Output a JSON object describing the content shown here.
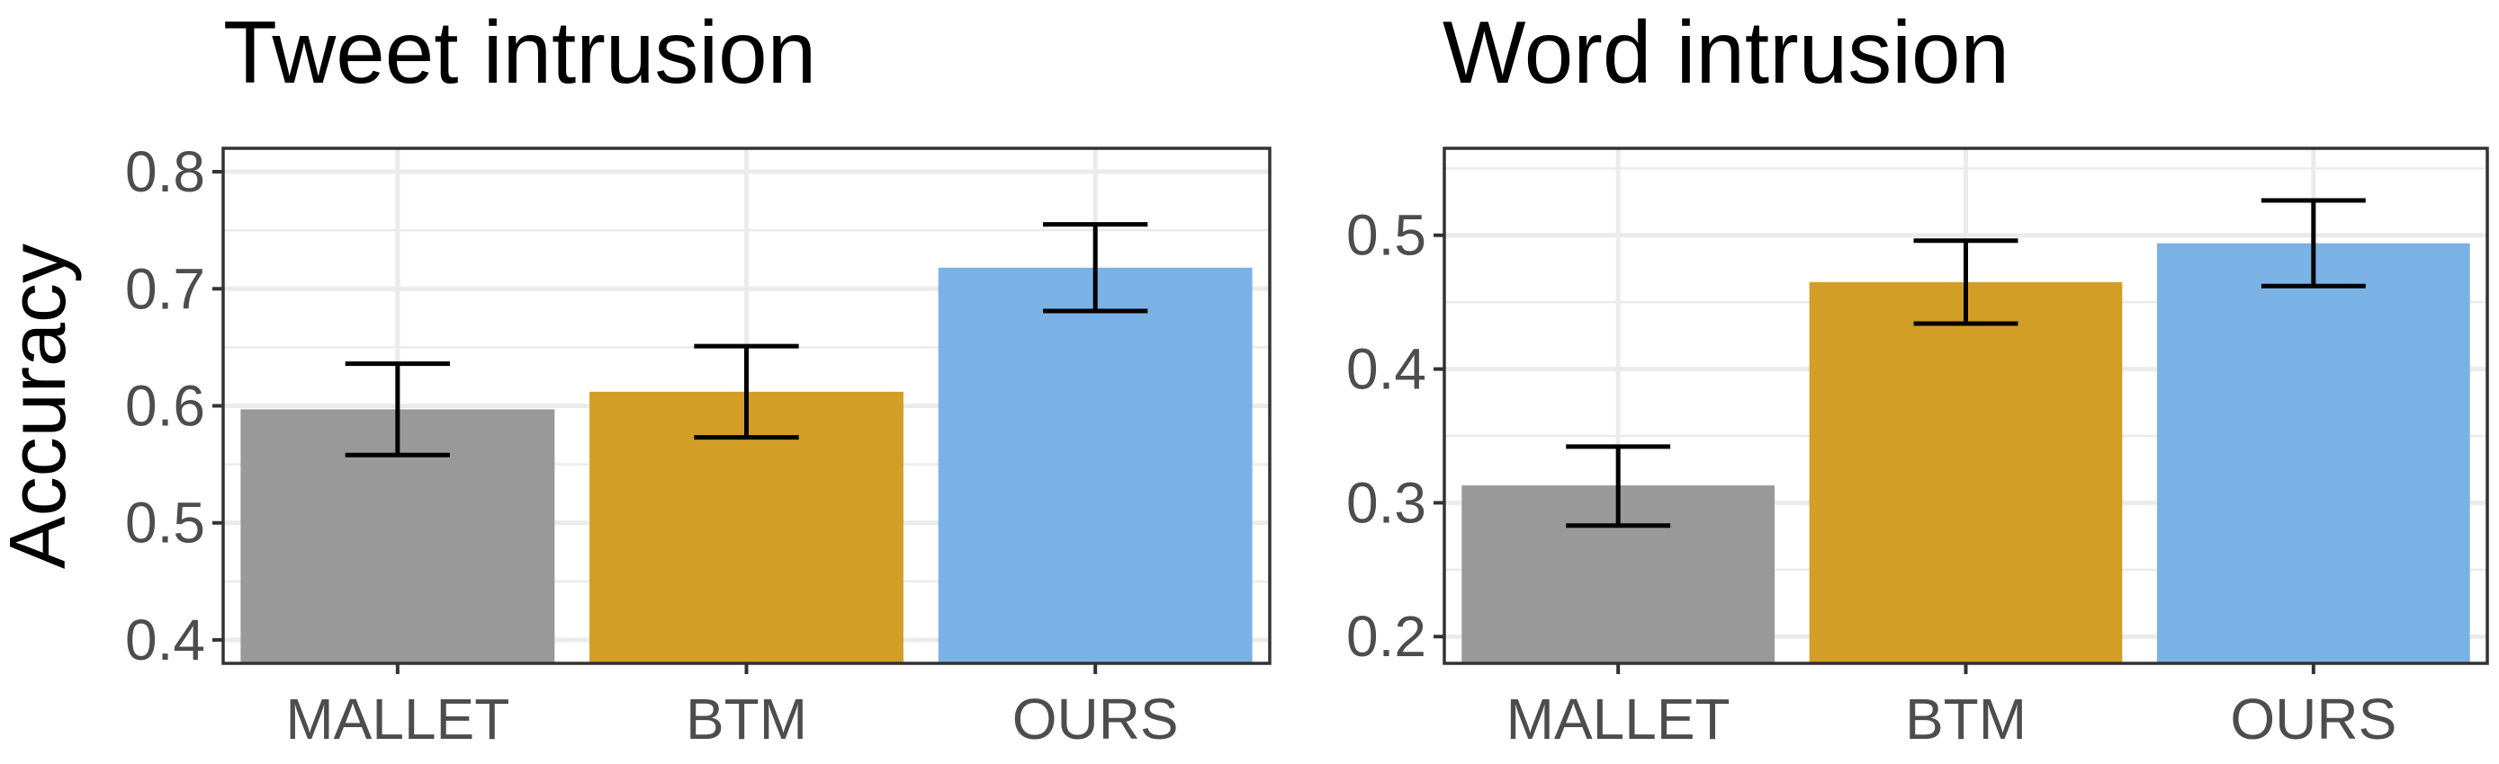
{
  "figure": {
    "ylabel": "Accuracy"
  },
  "chart_data": [
    {
      "type": "bar",
      "title": "Tweet intrusion",
      "xlabel": "",
      "ylabel": "Accuracy",
      "categories": [
        "MALLET",
        "BTM",
        "OURS"
      ],
      "values": [
        0.597,
        0.612,
        0.718
      ],
      "error_low": [
        0.558,
        0.573,
        0.681
      ],
      "error_high": [
        0.636,
        0.651,
        0.755
      ],
      "ylim": [
        0.38,
        0.82
      ],
      "yticks": [
        0.4,
        0.5,
        0.6,
        0.7,
        0.8
      ],
      "ytick_labels": [
        "0.4",
        "0.5",
        "0.6",
        "0.7",
        "0.8"
      ],
      "colors": [
        "#999999",
        "#D39E26",
        "#7BB2E6"
      ],
      "grid": true,
      "legend": "none"
    },
    {
      "type": "bar",
      "title": "Word intrusion",
      "xlabel": "",
      "ylabel": "",
      "categories": [
        "MALLET",
        "BTM",
        "OURS"
      ],
      "values": [
        0.313,
        0.465,
        0.494
      ],
      "error_low": [
        0.283,
        0.434,
        0.462
      ],
      "error_high": [
        0.342,
        0.496,
        0.526
      ],
      "ylim": [
        0.18,
        0.565
      ],
      "yticks": [
        0.2,
        0.3,
        0.4,
        0.5
      ],
      "ytick_labels": [
        "0.2",
        "0.3",
        "0.4",
        "0.5"
      ],
      "colors": [
        "#999999",
        "#D39E26",
        "#7BB2E6"
      ],
      "grid": true,
      "legend": "none"
    }
  ]
}
